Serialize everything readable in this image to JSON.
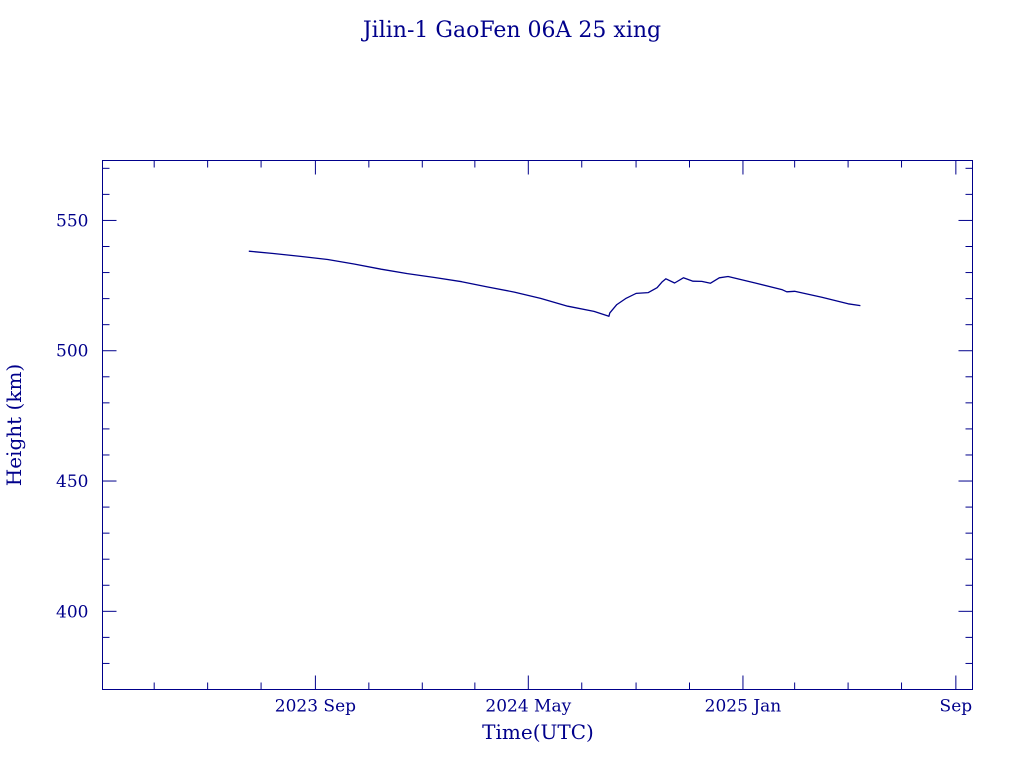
{
  "chart_data": {
    "type": "line",
    "title": "Jilin-1 GaoFen 06A 25 xing",
    "xlabel": "Time(UTC)",
    "ylabel": "Height (km)",
    "ylim": [
      370,
      573
    ],
    "xlim": [
      "2023-01-01",
      "2025-09-20"
    ],
    "x_ticks": [
      {
        "label": "2023 Sep",
        "date": "2023-09-01"
      },
      {
        "label": "2024 May",
        "date": "2024-05-01"
      },
      {
        "label": "2025 Jan",
        "date": "2025-01-01"
      },
      {
        "label": "Sep",
        "date": "2025-09-01"
      }
    ],
    "y_ticks": [
      400,
      450,
      500,
      550
    ],
    "grid": false,
    "color": "#00008b",
    "series": [
      {
        "x": [
          "2023-06-17",
          "2023-07-15",
          "2023-08-15",
          "2023-09-15",
          "2023-10-15",
          "2023-11-15",
          "2023-12-15",
          "2024-01-15",
          "2024-02-15",
          "2024-03-15",
          "2024-04-15",
          "2024-05-15",
          "2024-06-15",
          "2024-07-15",
          "2024-08-01",
          "2024-08-02",
          "2024-08-10",
          "2024-08-20",
          "2024-09-01",
          "2024-09-15",
          "2024-09-25",
          "2024-10-01",
          "2024-10-05",
          "2024-10-15",
          "2024-10-25",
          "2024-11-05",
          "2024-11-15",
          "2024-11-25",
          "2024-12-05",
          "2024-12-15",
          "2025-01-15",
          "2025-02-15",
          "2025-02-20",
          "2025-03-01",
          "2025-04-01",
          "2025-05-01",
          "2025-05-15"
        ],
        "values": [
          538.2,
          537.3,
          536.2,
          535.0,
          533.3,
          531.3,
          529.6,
          528.1,
          526.5,
          524.5,
          522.5,
          520.1,
          517.1,
          515.1,
          513.2,
          514.5,
          517.7,
          520.0,
          522.0,
          522.3,
          524.2,
          526.5,
          527.6,
          526.0,
          528.0,
          526.7,
          526.6,
          525.9,
          528.0,
          528.5,
          526.0,
          523.4,
          522.6,
          522.8,
          520.5,
          518.0,
          517.3
        ]
      }
    ]
  }
}
